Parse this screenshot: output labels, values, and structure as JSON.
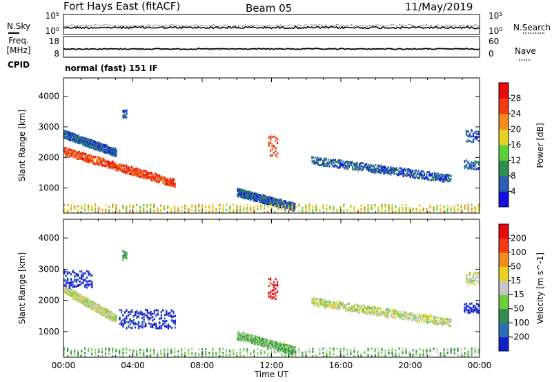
{
  "header": {
    "title": "Fort Hays East (fitACF)",
    "beam": "Beam 05",
    "date": "11/May/2019"
  },
  "colors": {
    "frame": "#000000",
    "background": "#ffffff"
  },
  "chart_data": [
    {
      "type": "line",
      "name": "noise-panel",
      "left_label": "N.Sky",
      "right_label": "N.Search",
      "left_ticks": [
        "10^5",
        "10^0"
      ],
      "right_ticks": [
        "10^5",
        "10^0"
      ],
      "series": [
        {
          "name": "N.Sky",
          "style": "solid"
        },
        {
          "name": "N.Search",
          "style": "dotted"
        }
      ]
    },
    {
      "type": "line",
      "name": "frequency-panel",
      "left_label": [
        "Freq.",
        "[MHz]"
      ],
      "right_label": "Nave",
      "left_ticks": [
        "18",
        "8"
      ],
      "right_ticks": [
        "60",
        "0"
      ],
      "series": [
        {
          "name": "Freq.",
          "style": "solid"
        },
        {
          "name": "Nave",
          "style": "dotted"
        }
      ]
    },
    {
      "type": "text",
      "name": "cpid-panel",
      "label": "CPID",
      "value": "normal (fast) 151 IF"
    },
    {
      "type": "heatmap",
      "name": "power-panel",
      "ylabel": "Slant Range [km]",
      "yticks": [
        1000,
        2000,
        3000,
        4000
      ],
      "ylim": [
        180,
        4600
      ],
      "xlim": [
        0,
        24
      ],
      "colorbar": {
        "label": "Power [dB]",
        "ticks": [
          "4",
          "8",
          "12",
          "16",
          "20",
          "24",
          "28"
        ],
        "colors": [
          "#1410e0",
          "#2a5fb0",
          "#2f8f4d",
          "#5ccf3c",
          "#e6d21e",
          "#f08c1e",
          "#f03a14",
          "#e80a0a"
        ]
      },
      "features": [
        {
          "type": "band",
          "x_start": 0.0,
          "x_end": 6.4,
          "y_start": 2200,
          "y_end": 1150,
          "color_index": 6
        },
        {
          "type": "band",
          "x_start": 0.0,
          "x_end": 3.0,
          "y_start": 2750,
          "y_end": 2150,
          "color_index": 1
        },
        {
          "type": "band",
          "x_start": 10.0,
          "x_end": 13.3,
          "y_start": 850,
          "y_end": 370,
          "color_index": 1
        },
        {
          "type": "band",
          "x_start": 14.3,
          "x_end": 22.3,
          "y_start": 1900,
          "y_end": 1300,
          "color_index": 1
        },
        {
          "type": "band",
          "x_start": 0.0,
          "x_end": 23.9,
          "y_start": 330,
          "y_end": 330,
          "color_index": 4
        },
        {
          "type": "blob",
          "x_start": 11.8,
          "x_end": 12.3,
          "y_start": 2700,
          "y_end": 2000,
          "color_index": 6
        },
        {
          "type": "blob",
          "x_start": 3.4,
          "x_end": 3.6,
          "y_start": 3600,
          "y_end": 3300,
          "color_index": 1
        },
        {
          "type": "blob",
          "x_start": 23.2,
          "x_end": 23.9,
          "y_start": 2900,
          "y_end": 2500,
          "color_index": 1
        },
        {
          "type": "blob",
          "x_start": 23.1,
          "x_end": 23.9,
          "y_start": 1900,
          "y_end": 1600,
          "color_index": 1
        }
      ]
    },
    {
      "type": "heatmap",
      "name": "velocity-panel",
      "ylabel": "Slant Range [km]",
      "yticks": [
        1000,
        2000,
        3000,
        4000
      ],
      "ylim": [
        180,
        4600
      ],
      "xlim": [
        0,
        24
      ],
      "xticks": [
        "00:00",
        "04:00",
        "08:00",
        "12:00",
        "16:00",
        "20:00",
        "00:00"
      ],
      "xlabel": "Time UT",
      "colorbar": {
        "label": "Velocity [m s^-1]",
        "ticks": [
          "200",
          "100",
          "50",
          "15",
          "-15",
          "-50",
          "-100",
          "-200"
        ],
        "colors": [
          "#1420d0",
          "#2c6fb8",
          "#2f8f4d",
          "#6ccf3c",
          "#c8c8c8",
          "#e8d21e",
          "#f08c1e",
          "#f03a14",
          "#e80a0a"
        ]
      },
      "features": [
        {
          "type": "band",
          "x_start": 0.0,
          "x_end": 3.0,
          "y_start": 2350,
          "y_end": 1400,
          "color_index": 4
        },
        {
          "type": "blob",
          "x_start": 3.2,
          "x_end": 6.4,
          "y_start": 1700,
          "y_end": 1100,
          "color_index": 0
        },
        {
          "type": "blob",
          "x_start": 0.0,
          "x_end": 1.6,
          "y_start": 2950,
          "y_end": 2400,
          "color_index": 0
        },
        {
          "type": "band",
          "x_start": 10.0,
          "x_end": 13.3,
          "y_start": 880,
          "y_end": 380,
          "color_index": 3
        },
        {
          "type": "band",
          "x_start": 14.3,
          "x_end": 22.3,
          "y_start": 1950,
          "y_end": 1300,
          "color_index": 4
        },
        {
          "type": "band",
          "x_start": 0.0,
          "x_end": 23.9,
          "y_start": 330,
          "y_end": 330,
          "color_index": 3
        },
        {
          "type": "blob",
          "x_start": 11.8,
          "x_end": 12.3,
          "y_start": 2700,
          "y_end": 2000,
          "color_index": 8
        },
        {
          "type": "blob",
          "x_start": 3.4,
          "x_end": 3.6,
          "y_start": 3600,
          "y_end": 3300,
          "color_index": 2
        },
        {
          "type": "blob",
          "x_start": 23.2,
          "x_end": 23.9,
          "y_start": 2900,
          "y_end": 2500,
          "color_index": 4
        },
        {
          "type": "blob",
          "x_start": 23.1,
          "x_end": 23.9,
          "y_start": 1900,
          "y_end": 1600,
          "color_index": 0
        }
      ]
    }
  ]
}
